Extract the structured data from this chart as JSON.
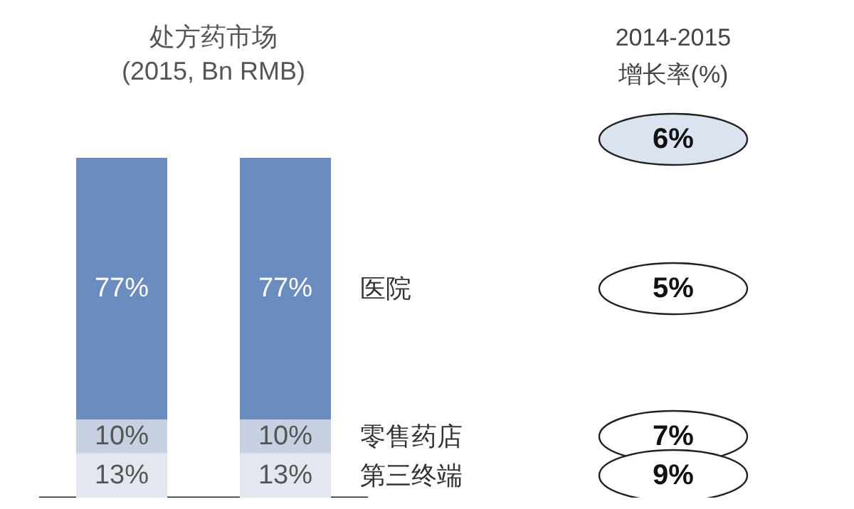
{
  "chart_data": {
    "type": "bar",
    "title": "处方药市场",
    "subtitle": "(2015, Bn RMB)",
    "categories": [
      null,
      null
    ],
    "stacked": true,
    "legend": false,
    "tick_labels": false,
    "ylim": [
      0,
      100
    ],
    "series": [
      {
        "name": "第三终端",
        "color": "#e3e7ef",
        "values": [
          13,
          13
        ],
        "value_labels": [
          "13%",
          "13%"
        ]
      },
      {
        "name": "零售药店",
        "color": "#c6d0e0",
        "values": [
          10,
          10
        ],
        "value_labels": [
          "10%",
          "10%"
        ]
      },
      {
        "name": "医院",
        "color": "#6b8cbe",
        "values": [
          77,
          77
        ],
        "value_labels": [
          "77%",
          "77%"
        ]
      }
    ],
    "annotations": [
      "2014-2015",
      "增长率(%)",
      "6%",
      "5%",
      "7%",
      "9%"
    ]
  }
}
